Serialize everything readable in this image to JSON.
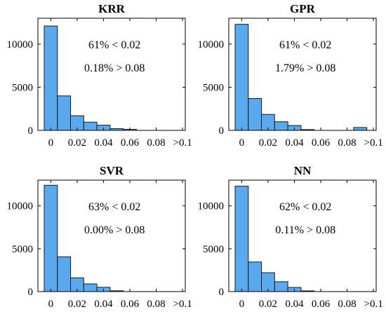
{
  "figure": {
    "bar_color": "#5aa8ee",
    "edge_color": "#1a1a1a"
  },
  "chart_data": [
    {
      "type": "bar",
      "title": "KRR",
      "categories": [
        "0-0.01",
        "0.01-0.02",
        "0.02-0.03",
        "0.03-0.04",
        "0.04-0.05",
        "0.05-0.06",
        "0.06-0.07",
        "0.07-0.08",
        "0.08-0.09",
        ">0.09"
      ],
      "values": [
        12100,
        4000,
        1700,
        950,
        600,
        200,
        120,
        0,
        0,
        0
      ],
      "xticks": [
        "0",
        "0.02",
        "0.04",
        "0.06",
        "0.08",
        ">0.1"
      ],
      "yticks": [
        "0",
        "5000",
        "10000"
      ],
      "ylim": [
        0,
        13000
      ],
      "annotations": [
        "61% < 0.02",
        "0.18% > 0.08"
      ],
      "grid": false
    },
    {
      "type": "bar",
      "title": "GPR",
      "categories": [
        "0-0.01",
        "0.01-0.02",
        "0.02-0.03",
        "0.03-0.04",
        "0.04-0.05",
        "0.05-0.06",
        "0.06-0.07",
        "0.07-0.08",
        "0.08-0.09",
        ">0.09"
      ],
      "values": [
        12300,
        3700,
        1850,
        1000,
        560,
        100,
        0,
        0,
        0,
        330
      ],
      "xticks": [
        "0",
        "0.02",
        "0.04",
        "0.06",
        "0.08",
        ">0.1"
      ],
      "yticks": [
        "0",
        "5000",
        "10000"
      ],
      "ylim": [
        0,
        13000
      ],
      "annotations": [
        "61% < 0.02",
        "1.79% > 0.08"
      ],
      "grid": false
    },
    {
      "type": "bar",
      "title": "SVR",
      "categories": [
        "0-0.01",
        "0.01-0.02",
        "0.02-0.03",
        "0.03-0.04",
        "0.04-0.05",
        "0.05-0.06",
        "0.06-0.07",
        "0.07-0.08",
        "0.08-0.09",
        ">0.09"
      ],
      "values": [
        12400,
        4050,
        1600,
        900,
        500,
        100,
        0,
        0,
        0,
        0
      ],
      "xticks": [
        "0",
        "0.02",
        "0.04",
        "0.06",
        "0.08",
        ">0.1"
      ],
      "yticks": [
        "0",
        "5000",
        "10000"
      ],
      "ylim": [
        0,
        13000
      ],
      "annotations": [
        "63% < 0.02",
        "0.00% > 0.08"
      ],
      "grid": false
    },
    {
      "type": "bar",
      "title": "NN",
      "categories": [
        "0-0.01",
        "0.01-0.02",
        "0.02-0.03",
        "0.03-0.04",
        "0.04-0.05",
        "0.05-0.06",
        "0.06-0.07",
        "0.07-0.08",
        "0.08-0.09",
        ">0.09"
      ],
      "values": [
        12300,
        3450,
        2200,
        1150,
        480,
        80,
        0,
        0,
        0,
        0
      ],
      "xticks": [
        "0",
        "0.02",
        "0.04",
        "0.06",
        "0.08",
        ">0.1"
      ],
      "yticks": [
        "0",
        "5000",
        "10000"
      ],
      "ylim": [
        0,
        13000
      ],
      "annotations": [
        "62% < 0.02",
        "0.11% > 0.08"
      ],
      "grid": false
    }
  ]
}
